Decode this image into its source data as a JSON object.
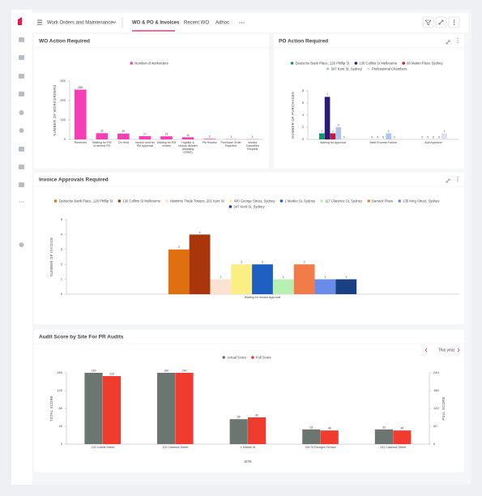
{
  "app": {
    "section": "Work Orders and Maintenance",
    "tabs": [
      "WO & PO & Invoices",
      "Recent WO",
      "Adhoc"
    ]
  },
  "chart_data": [
    {
      "type": "bar",
      "title": "WO Action Required",
      "ylabel": "NUMBER OF WORKORDERS",
      "categories": [
        "Received",
        "Waiting for PM to amend PO",
        "On Hold",
        "Invoice sent for PM Approval",
        "Waiting for PM review",
        "Highlite & history deleted (Awaiting DSBS)",
        "PM Review",
        "Purchase Order Rejected",
        "Vendor Cancelled Request"
      ],
      "series": [
        {
          "name": "Number of workorders",
          "color": "#f53fb5",
          "values": [
            256,
            32,
            30,
            17,
            16,
            11,
            3,
            1,
            1
          ]
        }
      ],
      "ylim": [
        0,
        300
      ],
      "yticks": [
        0,
        100,
        200,
        300
      ]
    },
    {
      "type": "bar",
      "title": "PO Action Required",
      "ylabel": "NUMBER OF PURCHASES",
      "categories": [
        "Waiting for Approval",
        "Yardi Process Failure",
        "Add Approver"
      ],
      "series": [
        {
          "name": "Deutsche Bank Place, 126 Phillip St",
          "color": "#1b8f72",
          "values": [
            1,
            0,
            0
          ]
        },
        {
          "name": "130 Collins St Melbourne",
          "color": "#2c1a78",
          "values": [
            7,
            0,
            0
          ]
        },
        {
          "name": "60 Martin Place Sydney",
          "color": "#c4183f",
          "values": [
            1,
            0,
            0
          ]
        },
        {
          "name": "347 Kent St, Sydney",
          "color": "#abc6ef",
          "values": [
            2,
            1,
            0
          ]
        },
        {
          "name": "Professional Chambers",
          "color": "#e2ddf5",
          "values": [
            0,
            0,
            1
          ]
        }
      ],
      "ylim": [
        0,
        8
      ],
      "yticks": [
        0,
        2,
        4,
        6,
        8
      ]
    },
    {
      "type": "bar",
      "title": "Invoice Approvals Required",
      "ylabel": "NUMBER OF INVOICE",
      "categories": [
        "Waiting for Invoice Approval"
      ],
      "series": [
        {
          "name": "Deutsche Bank Place, 126 Phillip St",
          "color": "#e0700f",
          "values": [
            3
          ]
        },
        {
          "name": "130 Collins St Melbourne",
          "color": "#a8360a",
          "values": [
            4
          ]
        },
        {
          "name": "Maritime Trade Towers, 201 Kent St",
          "color": "#fde2d2",
          "values": [
            1
          ]
        },
        {
          "name": "430 George Street, Sydney",
          "color": "#fbee82",
          "values": [
            2
          ]
        },
        {
          "name": "1 Market St, Sydney",
          "color": "#1e5fc2",
          "values": [
            2
          ]
        },
        {
          "name": "117 Clarence St, Sydney",
          "color": "#b8f0b2",
          "values": [
            1
          ]
        },
        {
          "name": "Barrack Place",
          "color": "#f27b4a",
          "values": [
            2
          ]
        },
        {
          "name": "135 King Street, Sydney",
          "color": "#6a8bea",
          "values": [
            1
          ]
        },
        {
          "name": "347 Kent St, Sydney",
          "color": "#1a3f82",
          "values": [
            1
          ]
        }
      ],
      "ylim": [
        0,
        5
      ],
      "yticks": [
        0,
        1,
        2,
        3,
        4,
        5
      ]
    },
    {
      "type": "bar",
      "title": "Audit Score by Site For PR Audits",
      "period": "This year",
      "ylabel": "TOTAL SCORE",
      "y2label": "FULL SCORE",
      "xlabel": "SITE",
      "categories": [
        "120 Collins Street",
        "120 Clarence Street",
        "1 Market St",
        "259 St Georges Terrace",
        "131 Clarence Street"
      ],
      "series": [
        {
          "name": "Actual Score",
          "color": "#6b7671",
          "values": [
            160,
            160,
            56,
            33,
            33
          ]
        },
        {
          "name": "Full Score",
          "color": "#f03b2f",
          "axis": "y2",
          "values": [
            229,
            240,
            90,
            46,
            46
          ]
        }
      ],
      "ylim": [
        0,
        160
      ],
      "yticks": [
        0,
        40,
        80,
        120,
        160
      ],
      "y2lim": [
        0,
        240
      ],
      "y2ticks": [
        0,
        60,
        120,
        180,
        240
      ]
    }
  ]
}
